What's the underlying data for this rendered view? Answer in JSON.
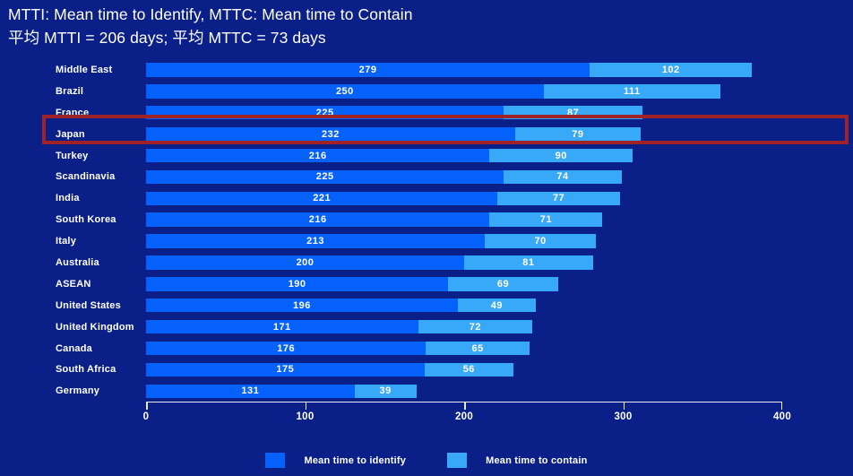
{
  "title": {
    "line1": "MTTI: Mean time to Identify, MTTC: Mean time to Contain",
    "line2": "平均 MTTI = 206 days; 平均 MTTC = 73 days"
  },
  "chart_data": {
    "type": "bar",
    "orientation": "horizontal",
    "stacked": true,
    "categories": [
      "Middle East",
      "Brazil",
      "France",
      "Japan",
      "Turkey",
      "Scandinavia",
      "India",
      "South Korea",
      "Italy",
      "Australia",
      "ASEAN",
      "United States",
      "United Kingdom",
      "Canada",
      "South Africa",
      "Germany"
    ],
    "series": [
      {
        "name": "Mean time to identify",
        "color": "#0561fb",
        "values": [
          279,
          250,
          225,
          232,
          216,
          225,
          221,
          216,
          213,
          200,
          190,
          196,
          171,
          176,
          175,
          131
        ]
      },
      {
        "name": "Mean time to contain",
        "color": "#38a8f8",
        "values": [
          102,
          111,
          87,
          79,
          90,
          74,
          77,
          71,
          70,
          81,
          69,
          49,
          72,
          65,
          56,
          39
        ]
      }
    ],
    "xlim": [
      0,
      400
    ],
    "x_ticks": [
      0,
      100,
      200,
      300,
      400
    ],
    "grid": false,
    "legend_position": "bottom",
    "highlighted_category": "Japan",
    "highlight_color": "#9e2226",
    "title": "MTTI: Mean time to Identify, MTTC: Mean time to Contain",
    "subtitle": "平均 MTTI = 206 days; 平均 MTTC = 73 days",
    "xlabel": "",
    "ylabel": ""
  },
  "colors": {
    "background": "#0a2088",
    "mtti_bar": "#0561fb",
    "mttc_bar": "#38a8f8",
    "highlight_border": "#9e2226",
    "text": "#ffffff"
  },
  "legend": {
    "items": [
      {
        "label": "Mean time to identify"
      },
      {
        "label": "Mean time to contain"
      }
    ]
  }
}
